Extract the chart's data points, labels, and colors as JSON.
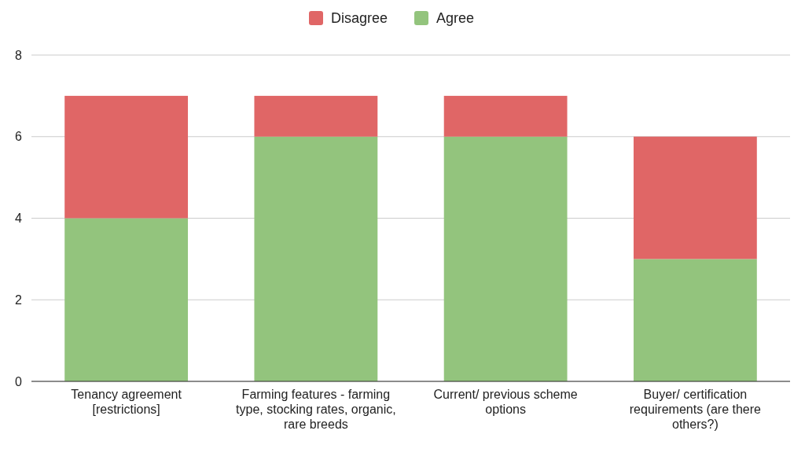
{
  "chart_data": {
    "type": "bar",
    "stacked": true,
    "categories": [
      "Tenancy agreement [restrictions]",
      "Farming features - farming type, stocking rates, organic, rare breeds",
      "Current/ previous scheme options",
      "Buyer/ certification requirements (are there others?)"
    ],
    "series": [
      {
        "name": "Agree",
        "color": "#93c47d",
        "values": [
          4,
          6,
          6,
          3
        ]
      },
      {
        "name": "Disagree",
        "color": "#e06666",
        "values": [
          3,
          1,
          1,
          3
        ]
      }
    ],
    "ylim": [
      0,
      8
    ],
    "yticks": [
      0,
      2,
      4,
      6,
      8
    ],
    "grid": "y",
    "legend": "top"
  }
}
